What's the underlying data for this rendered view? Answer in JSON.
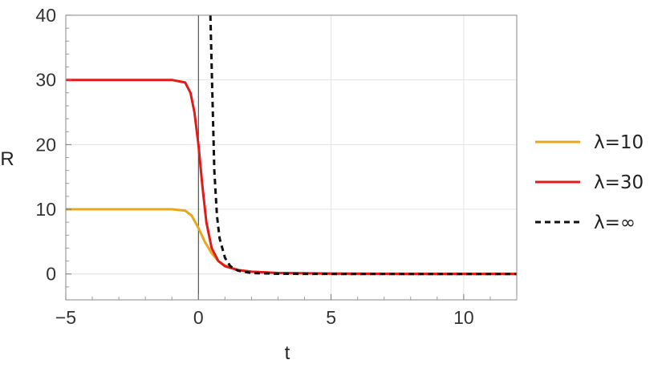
{
  "chart_data": {
    "type": "line",
    "xlabel": "t",
    "ylabel": "R",
    "xlim": [
      -5,
      12
    ],
    "ylim": [
      -4,
      40
    ],
    "xticks": [
      {
        "value": -5,
        "label": "−5"
      },
      {
        "value": 0,
        "label": "0"
      },
      {
        "value": 5,
        "label": "5"
      },
      {
        "value": 10,
        "label": "10"
      }
    ],
    "yticks": [
      {
        "value": 0,
        "label": "0"
      },
      {
        "value": 10,
        "label": "10"
      },
      {
        "value": 20,
        "label": "20"
      },
      {
        "value": 30,
        "label": "30"
      },
      {
        "value": 40,
        "label": "40"
      }
    ],
    "grid": true,
    "legend_position": "right",
    "series": [
      {
        "name": "λ=10",
        "color": "#e8a81d",
        "style": "solid",
        "x": [
          -5,
          -2,
          -1,
          -0.5,
          -0.25,
          0,
          0.25,
          0.5,
          0.75,
          1,
          1.5,
          2,
          3,
          5,
          8,
          12
        ],
        "y": [
          10,
          10,
          10,
          9.8,
          9.0,
          7.1,
          4.9,
          3.2,
          2.0,
          1.3,
          0.6,
          0.35,
          0.15,
          0.05,
          0.02,
          0.01
        ]
      },
      {
        "name": "λ=30",
        "color": "#e31a1a",
        "style": "solid",
        "x": [
          -5,
          -2,
          -1,
          -0.5,
          -0.3,
          -0.15,
          0,
          0.15,
          0.3,
          0.5,
          0.75,
          1,
          1.5,
          2,
          3,
          5,
          8,
          12
        ],
        "y": [
          30,
          30,
          30,
          29.6,
          28.0,
          25.0,
          20.0,
          13.5,
          8.0,
          4.0,
          2.0,
          1.2,
          0.6,
          0.35,
          0.15,
          0.05,
          0.02,
          0.01
        ]
      },
      {
        "name": "λ=∞",
        "color": "#111111",
        "style": "dashed",
        "x": [
          0.45,
          0.5,
          0.6,
          0.7,
          0.8,
          1,
          1.2,
          1.5,
          2,
          3,
          5,
          8,
          12
        ],
        "y": [
          40,
          32,
          16,
          9,
          5.5,
          2.5,
          1.2,
          0.5,
          0.15,
          0.03,
          0.0,
          0.0,
          0.0
        ]
      }
    ]
  }
}
